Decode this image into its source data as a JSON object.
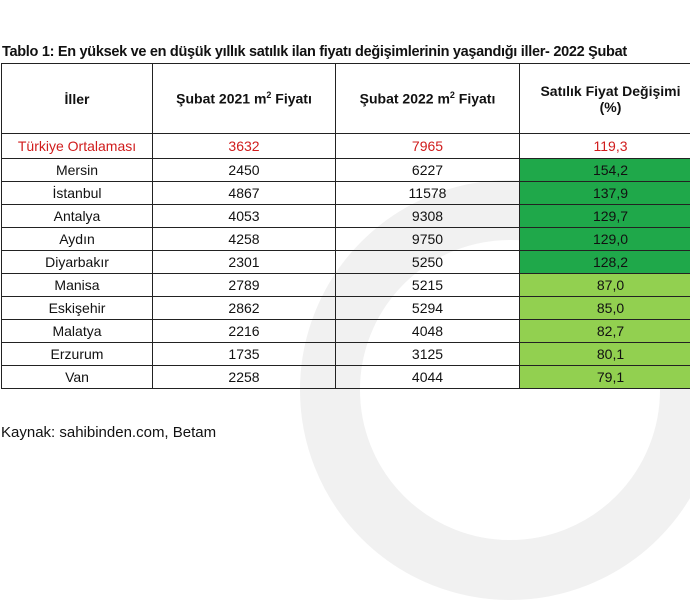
{
  "title": "Tablo 1: En yüksek ve en düşük yıllık satılık ilan fiyatı değişimlerinin yaşandığı iller- 2022 Şubat",
  "headers": {
    "city": "İller",
    "y2021_pre": "Şubat 2021 m",
    "y2021_post": " Fiyatı",
    "y2022_pre": "Şubat 2022 m",
    "y2022_post": " Fiyatı",
    "sup": "2",
    "change_line1": "Satılık Fiyat Değişimi",
    "change_line2": "(%)"
  },
  "average": {
    "city": "Türkiye Ortalaması",
    "p2021": "3632",
    "p2022": "7965",
    "change": "119,3"
  },
  "rows": [
    {
      "city": "Mersin",
      "p2021": "2450",
      "p2022": "6227",
      "change": "154,2"
    },
    {
      "city": "İstanbul",
      "p2021": "4867",
      "p2022": "11578",
      "change": "137,9"
    },
    {
      "city": "Antalya",
      "p2021": "4053",
      "p2022": "9308",
      "change": "129,7"
    },
    {
      "city": "Aydın",
      "p2021": "4258",
      "p2022": "9750",
      "change": "129,0"
    },
    {
      "city": "Diyarbakır",
      "p2021": "2301",
      "p2022": "5250",
      "change": "128,2"
    },
    {
      "city": "Manisa",
      "p2021": "2789",
      "p2022": "5215",
      "change": "87,0"
    },
    {
      "city": "Eskişehir",
      "p2021": "2862",
      "p2022": "5294",
      "change": "85,0"
    },
    {
      "city": "Malatya",
      "p2021": "2216",
      "p2022": "4048",
      "change": "82,7"
    },
    {
      "city": "Erzurum",
      "p2021": "1735",
      "p2022": "3125",
      "change": "80,1"
    },
    {
      "city": "Van",
      "p2021": "2258",
      "p2022": "4044",
      "change": "79,1"
    }
  ],
  "colors": {
    "highest": "#1fa84a",
    "lowest": "#92d050",
    "average_text": "#d01c1c"
  },
  "source": "Kaynak: sahibinden.com, Betam"
}
